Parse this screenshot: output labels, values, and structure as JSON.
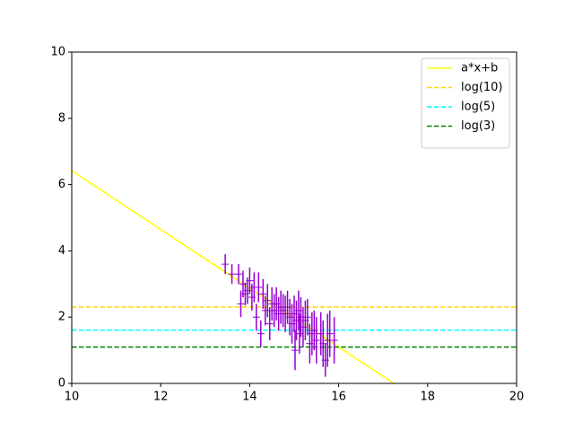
{
  "chart_data": {
    "type": "errorbar",
    "xlim": [
      10,
      20
    ],
    "ylim": [
      0,
      10
    ],
    "xticks": [
      10,
      12,
      14,
      16,
      18,
      20
    ],
    "yticks": [
      0,
      2,
      4,
      6,
      8,
      10
    ],
    "legend": "upper right",
    "series": [
      {
        "name": "a*x+b",
        "color": "#ffff00",
        "style": "solid",
        "x": [
          10,
          17.24
        ],
        "values": [
          6.42,
          0
        ]
      },
      {
        "name": "log(10)",
        "color": "#ffd700",
        "style": "dashed",
        "x": [
          10,
          20
        ],
        "values": [
          2.303,
          2.303
        ]
      },
      {
        "name": "log(5)",
        "color": "#00ffff",
        "style": "dashed",
        "x": [
          10,
          20
        ],
        "values": [
          1.609,
          1.609
        ]
      },
      {
        "name": "log(3)",
        "color": "#008000",
        "style": "dashed",
        "x": [
          10,
          20
        ],
        "values": [
          1.099,
          1.099
        ]
      }
    ],
    "points": {
      "color": "#9400d3",
      "x": [
        13.45,
        13.6,
        13.75,
        13.8,
        13.85,
        13.9,
        13.95,
        14.0,
        14.05,
        14.1,
        14.15,
        14.2,
        14.25,
        14.3,
        14.35,
        14.4,
        14.45,
        14.5,
        14.55,
        14.6,
        14.65,
        14.7,
        14.75,
        14.8,
        14.85,
        14.9,
        14.95,
        15.0,
        15.02,
        15.05,
        15.1,
        15.12,
        15.15,
        15.2,
        15.25,
        15.3,
        15.35,
        15.4,
        15.45,
        15.5,
        15.6,
        15.65,
        15.7,
        15.75,
        15.8,
        15.9
      ],
      "values": [
        3.6,
        3.3,
        3.3,
        2.4,
        3.0,
        2.7,
        2.8,
        3.1,
        2.6,
        2.9,
        2.0,
        2.9,
        1.5,
        2.7,
        2.2,
        2.5,
        1.8,
        2.4,
        2.2,
        2.4,
        2.1,
        2.3,
        2.2,
        2.1,
        2.3,
        2.0,
        1.8,
        2.1,
        1.0,
        1.9,
        2.2,
        1.5,
        2.0,
        1.7,
        1.9,
        2.0,
        1.2,
        1.5,
        1.6,
        1.3,
        1.5,
        1.2,
        0.7,
        1.3,
        1.5,
        1.3
      ],
      "errors": [
        0.3,
        0.3,
        0.3,
        0.4,
        0.4,
        0.35,
        0.4,
        0.4,
        0.4,
        0.45,
        0.4,
        0.45,
        0.4,
        0.45,
        0.45,
        0.5,
        0.5,
        0.5,
        0.5,
        0.5,
        0.5,
        0.5,
        0.5,
        0.55,
        0.5,
        0.55,
        0.6,
        0.55,
        0.6,
        0.6,
        0.6,
        0.6,
        0.6,
        0.6,
        0.6,
        0.55,
        0.6,
        0.65,
        0.6,
        0.7,
        0.65,
        0.7,
        0.5,
        0.8,
        0.7,
        0.7
      ]
    }
  }
}
